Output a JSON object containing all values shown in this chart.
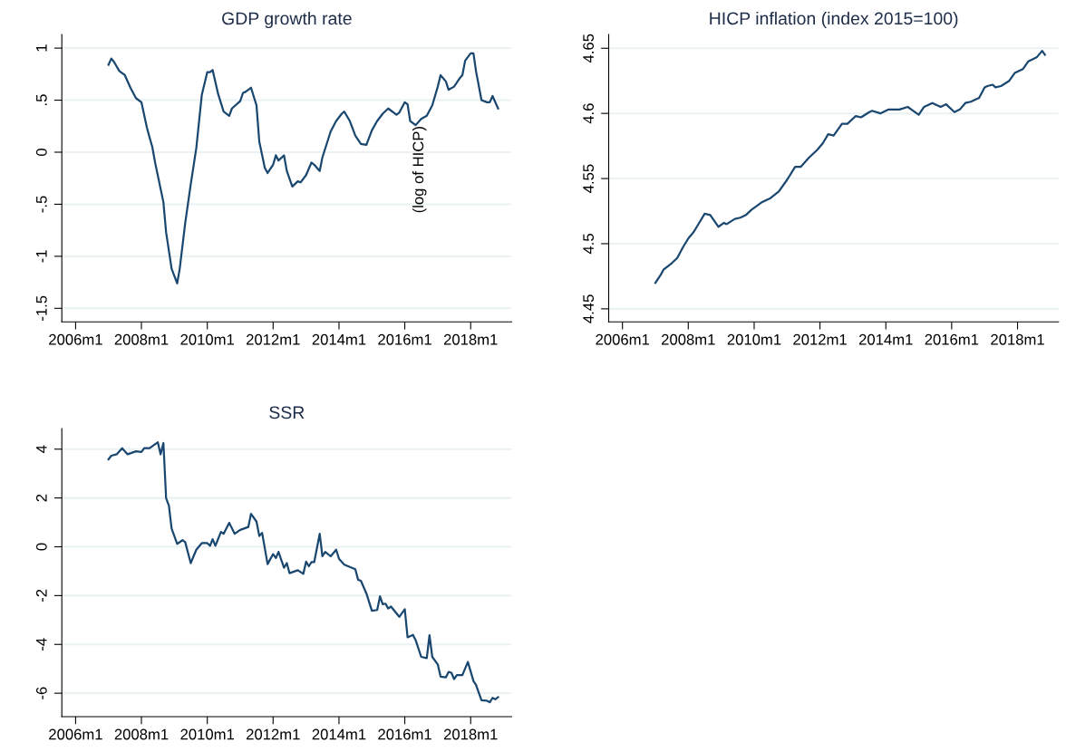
{
  "chart_data": [
    {
      "type": "line",
      "title": "GDP growth rate",
      "annotations": [
        "(log of HICP)"
      ],
      "grid": "y",
      "xlim": [
        "2005-08",
        "2019-04"
      ],
      "ylim": [
        -1.63,
        1.13
      ],
      "xticks": [
        {
          "value": "2006-01",
          "label": "2006m1"
        },
        {
          "value": "2008-01",
          "label": "2008m1"
        },
        {
          "value": "2010-01",
          "label": "2010m1"
        },
        {
          "value": "2012-01",
          "label": "2012m1"
        },
        {
          "value": "2014-01",
          "label": "2014m1"
        },
        {
          "value": "2016-01",
          "label": "2016m1"
        },
        {
          "value": "2018-01",
          "label": "2018m1"
        }
      ],
      "yticks": [
        {
          "value": -1.5,
          "label": "-1.5"
        },
        -1,
        {
          "value": -0.5,
          "label": "-.5"
        },
        0,
        {
          "value": 0.5,
          "label": ".5"
        },
        1
      ],
      "series": [
        {
          "color": "#1a476f",
          "x": [
            "2007-01",
            "2007-02",
            "2007-03",
            "2007-05",
            "2007-07",
            "2007-09",
            "2007-11",
            "2008-01",
            "2008-03",
            "2008-04",
            "2008-05",
            "2008-06",
            "2008-09",
            "2008-10",
            "2008-12",
            "2009-02",
            "2009-03",
            "2009-05",
            "2009-07",
            "2009-09",
            "2009-11",
            "2010-01",
            "2010-02",
            "2010-03",
            "2010-05",
            "2010-07",
            "2010-09",
            "2010-10",
            "2011-01",
            "2011-02",
            "2011-03",
            "2011-05",
            "2011-07",
            "2011-08",
            "2011-10",
            "2011-11",
            "2012-01",
            "2012-02",
            "2012-03",
            "2012-05",
            "2012-06",
            "2012-08",
            "2012-10",
            "2012-11",
            "2013-01",
            "2013-03",
            "2013-04",
            "2013-06",
            "2013-07",
            "2013-10",
            "2013-12",
            "2014-02",
            "2014-03",
            "2014-05",
            "2014-07",
            "2014-09",
            "2014-11",
            "2015-01",
            "2015-03",
            "2015-05",
            "2015-07",
            "2015-10",
            "2015-11",
            "2016-01",
            "2016-02",
            "2016-03",
            "2016-05",
            "2016-07",
            "2016-09",
            "2016-11",
            "2017-01",
            "2017-02",
            "2017-04",
            "2017-05",
            "2017-07",
            "2017-09",
            "2017-10",
            "2017-11",
            "2018-01",
            "2018-02",
            "2018-03",
            "2018-05",
            "2018-07",
            "2018-08",
            "2018-09",
            "2018-11"
          ],
          "values": [
            0.84,
            0.9,
            0.87,
            0.78,
            0.74,
            0.62,
            0.52,
            0.48,
            0.24,
            0.14,
            0.05,
            -0.1,
            -0.48,
            -0.77,
            -1.12,
            -1.26,
            -1.12,
            -0.68,
            -0.31,
            0.04,
            0.55,
            0.77,
            0.77,
            0.79,
            0.56,
            0.39,
            0.35,
            0.42,
            0.49,
            0.57,
            0.58,
            0.62,
            0.45,
            0.1,
            -0.15,
            -0.2,
            -0.12,
            -0.03,
            -0.08,
            -0.03,
            -0.18,
            -0.33,
            -0.28,
            -0.29,
            -0.22,
            -0.1,
            -0.12,
            -0.18,
            -0.05,
            0.2,
            0.3,
            0.37,
            0.39,
            0.3,
            0.16,
            0.08,
            0.07,
            0.21,
            0.3,
            0.37,
            0.42,
            0.36,
            0.38,
            0.48,
            0.46,
            0.3,
            0.26,
            0.32,
            0.35,
            0.45,
            0.63,
            0.74,
            0.68,
            0.6,
            0.63,
            0.71,
            0.74,
            0.88,
            0.95,
            0.95,
            0.78,
            0.5,
            0.48,
            0.48,
            0.54,
            0.42
          ]
        }
      ]
    },
    {
      "type": "line",
      "title": "HICP inflation (index 2015=100)",
      "grid": "y",
      "xlim": [
        "2005-08",
        "2019-04"
      ],
      "ylim": [
        4.44,
        4.6605
      ],
      "xticks": [
        {
          "value": "2006-01",
          "label": "2006m1"
        },
        {
          "value": "2008-01",
          "label": "2008m1"
        },
        {
          "value": "2010-01",
          "label": "2010m1"
        },
        {
          "value": "2012-01",
          "label": "2012m1"
        },
        {
          "value": "2014-01",
          "label": "2014m1"
        },
        {
          "value": "2016-01",
          "label": "2016m1"
        },
        {
          "value": "2018-01",
          "label": "2018m1"
        }
      ],
      "yticks": [
        4.45,
        4.5,
        4.55,
        4.6,
        4.65
      ],
      "series": [
        {
          "color": "#1a476f",
          "x": [
            "2007-01",
            "2007-03",
            "2007-04",
            "2007-07",
            "2007-09",
            "2007-11",
            "2008-01",
            "2008-03",
            "2008-05",
            "2008-07",
            "2008-09",
            "2008-12",
            "2009-02",
            "2009-03",
            "2009-06",
            "2009-08",
            "2009-10",
            "2009-12",
            "2010-04",
            "2010-07",
            "2010-10",
            "2011-01",
            "2011-04",
            "2011-06",
            "2011-09",
            "2011-12",
            "2012-02",
            "2012-04",
            "2012-06",
            "2012-09",
            "2012-11",
            "2013-02",
            "2013-04",
            "2013-07",
            "2013-08",
            "2013-11",
            "2014-02",
            "2014-06",
            "2014-09",
            "2014-11",
            "2015-01",
            "2015-03",
            "2015-06",
            "2015-09",
            "2015-11",
            "2016-02",
            "2016-04",
            "2016-06",
            "2016-08",
            "2016-11",
            "2017-01",
            "2017-02",
            "2017-04",
            "2017-05",
            "2017-07",
            "2017-10",
            "2017-12",
            "2018-03",
            "2018-05",
            "2018-08",
            "2018-10",
            "2018-11"
          ],
          "values": [
            4.47,
            4.476,
            4.48,
            4.485,
            4.489,
            4.497,
            4.504,
            4.509,
            4.516,
            4.523,
            4.522,
            4.513,
            4.516,
            4.515,
            4.519,
            4.52,
            4.522,
            4.526,
            4.532,
            4.535,
            4.54,
            4.549,
            4.559,
            4.559,
            4.566,
            4.572,
            4.577,
            4.584,
            4.583,
            4.592,
            4.592,
            4.598,
            4.597,
            4.601,
            4.602,
            4.6,
            4.603,
            4.603,
            4.605,
            4.602,
            4.599,
            4.605,
            4.608,
            4.605,
            4.607,
            4.601,
            4.603,
            4.608,
            4.609,
            4.612,
            4.62,
            4.621,
            4.622,
            4.62,
            4.621,
            4.625,
            4.631,
            4.634,
            4.64,
            4.643,
            4.648,
            4.645
          ]
        }
      ]
    },
    {
      "type": "line",
      "title": "SSR",
      "grid": "y",
      "xlim": [
        "2005-08",
        "2019-04"
      ],
      "ylim": [
        -6.96,
        4.84
      ],
      "xticks": [
        {
          "value": "2006-01",
          "label": "2006m1"
        },
        {
          "value": "2008-01",
          "label": "2008m1"
        },
        {
          "value": "2010-01",
          "label": "2010m1"
        },
        {
          "value": "2012-01",
          "label": "2012m1"
        },
        {
          "value": "2014-01",
          "label": "2014m1"
        },
        {
          "value": "2016-01",
          "label": "2016m1"
        },
        {
          "value": "2018-01",
          "label": "2018m1"
        }
      ],
      "yticks": [
        -6,
        -4,
        -2,
        0,
        2,
        4
      ],
      "series": [
        {
          "color": "#1a476f",
          "x": [
            "2007-01",
            "2007-02",
            "2007-04",
            "2007-06",
            "2007-08",
            "2007-11",
            "2008-01",
            "2008-02",
            "2008-04",
            "2008-07",
            "2008-08",
            "2008-09",
            "2008-10",
            "2008-11",
            "2008-12",
            "2009-02",
            "2009-04",
            "2009-05",
            "2009-07",
            "2009-09",
            "2009-11",
            "2010-01",
            "2010-02",
            "2010-03",
            "2010-04",
            "2010-06",
            "2010-07",
            "2010-09",
            "2010-11",
            "2011-01",
            "2011-04",
            "2011-05",
            "2011-07",
            "2011-08",
            "2011-09",
            "2011-11",
            "2012-01",
            "2012-02",
            "2012-03",
            "2012-05",
            "2012-06",
            "2012-07",
            "2012-10",
            "2012-12",
            "2013-01",
            "2013-02",
            "2013-03",
            "2013-04",
            "2013-06",
            "2013-07",
            "2013-08",
            "2013-10",
            "2013-12",
            "2014-01",
            "2014-03",
            "2014-07",
            "2014-08",
            "2014-09",
            "2014-11",
            "2015-01",
            "2015-03",
            "2015-04",
            "2015-05",
            "2015-06",
            "2015-07",
            "2015-08",
            "2015-11",
            "2016-01",
            "2016-02",
            "2016-04",
            "2016-05",
            "2016-07",
            "2016-09",
            "2016-10",
            "2016-11",
            "2017-01",
            "2017-02",
            "2017-04",
            "2017-05",
            "2017-06",
            "2017-07",
            "2017-08",
            "2017-10",
            "2017-12",
            "2018-02",
            "2018-03",
            "2018-05",
            "2018-07",
            "2018-08",
            "2018-09",
            "2018-10",
            "2018-11"
          ],
          "values": [
            3.58,
            3.73,
            3.79,
            4.04,
            3.79,
            3.91,
            3.88,
            4.04,
            4.04,
            4.28,
            3.79,
            4.25,
            1.99,
            1.68,
            0.75,
            0.12,
            0.27,
            0.19,
            -0.67,
            -0.12,
            0.15,
            0.15,
            0.04,
            0.31,
            0.04,
            0.61,
            0.53,
            0.98,
            0.53,
            0.69,
            0.81,
            1.35,
            1.03,
            0.44,
            0.57,
            -0.71,
            -0.3,
            -0.46,
            -0.21,
            -0.86,
            -0.67,
            -1.08,
            -0.96,
            -1.11,
            -0.61,
            -0.8,
            -0.63,
            -0.63,
            0.53,
            -0.39,
            -0.21,
            -0.39,
            -0.12,
            -0.49,
            -0.73,
            -0.92,
            -1.35,
            -1.39,
            -1.91,
            -2.62,
            -2.59,
            -2.03,
            -2.35,
            -2.33,
            -2.53,
            -2.45,
            -2.87,
            -2.56,
            -3.71,
            -3.61,
            -3.83,
            -4.51,
            -4.56,
            -3.62,
            -4.51,
            -4.82,
            -5.32,
            -5.35,
            -5.13,
            -5.16,
            -5.42,
            -5.26,
            -5.26,
            -4.72,
            -5.5,
            -5.66,
            -6.29,
            -6.31,
            -6.37,
            -6.19,
            -6.25,
            -6.16
          ]
        }
      ]
    }
  ]
}
